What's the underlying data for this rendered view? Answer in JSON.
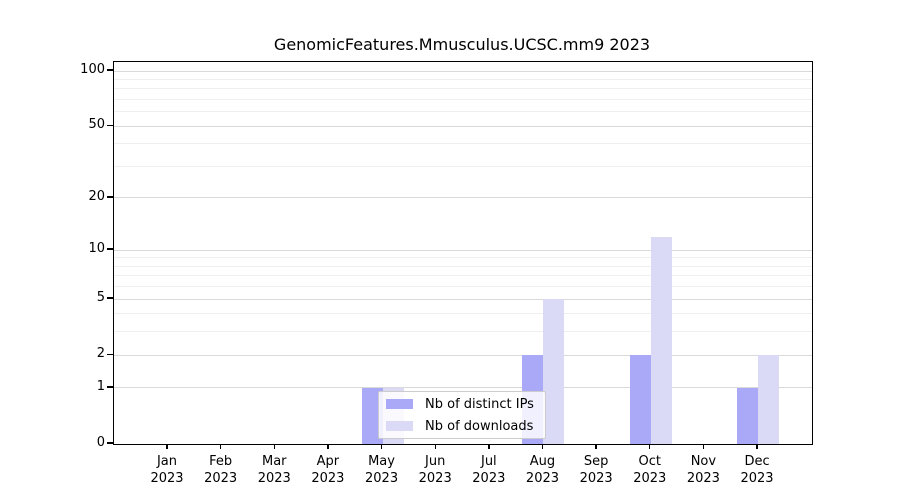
{
  "chart_data": {
    "type": "bar",
    "title": "GenomicFeatures.Mmusculus.UCSC.mm9 2023",
    "categories": [
      "Jan 2023",
      "Feb 2023",
      "Mar 2023",
      "Apr 2023",
      "May 2023",
      "Jun 2023",
      "Jul 2023",
      "Aug 2023",
      "Sep 2023",
      "Oct 2023",
      "Nov 2023",
      "Dec 2023"
    ],
    "series": [
      {
        "name": "Nb of distinct IPs",
        "color": "#a9a9f7",
        "values": [
          0,
          0,
          0,
          0,
          1,
          0,
          0,
          2,
          0,
          2,
          0,
          1
        ]
      },
      {
        "name": "Nb of downloads",
        "color": "#dadaf7",
        "values": [
          0,
          0,
          0,
          0,
          1,
          0,
          0,
          5,
          0,
          12,
          0,
          2
        ]
      }
    ],
    "yscale": "log1p",
    "yticks": [
      0,
      1,
      2,
      5,
      10,
      20,
      50,
      100
    ],
    "yticks_minor": [
      3,
      4,
      6,
      7,
      8,
      9,
      30,
      40,
      60,
      70,
      80,
      90
    ],
    "ylim": [
      0,
      110
    ],
    "xlabel": "",
    "ylabel": "",
    "grid": "horizontal",
    "legend_position": "lower center-left"
  },
  "colors": {
    "major_grid": "#d9d9d9",
    "minor_grid": "#efefef",
    "axis": "#000000",
    "legend_border": "#cccccc",
    "background": "#ffffff"
  }
}
